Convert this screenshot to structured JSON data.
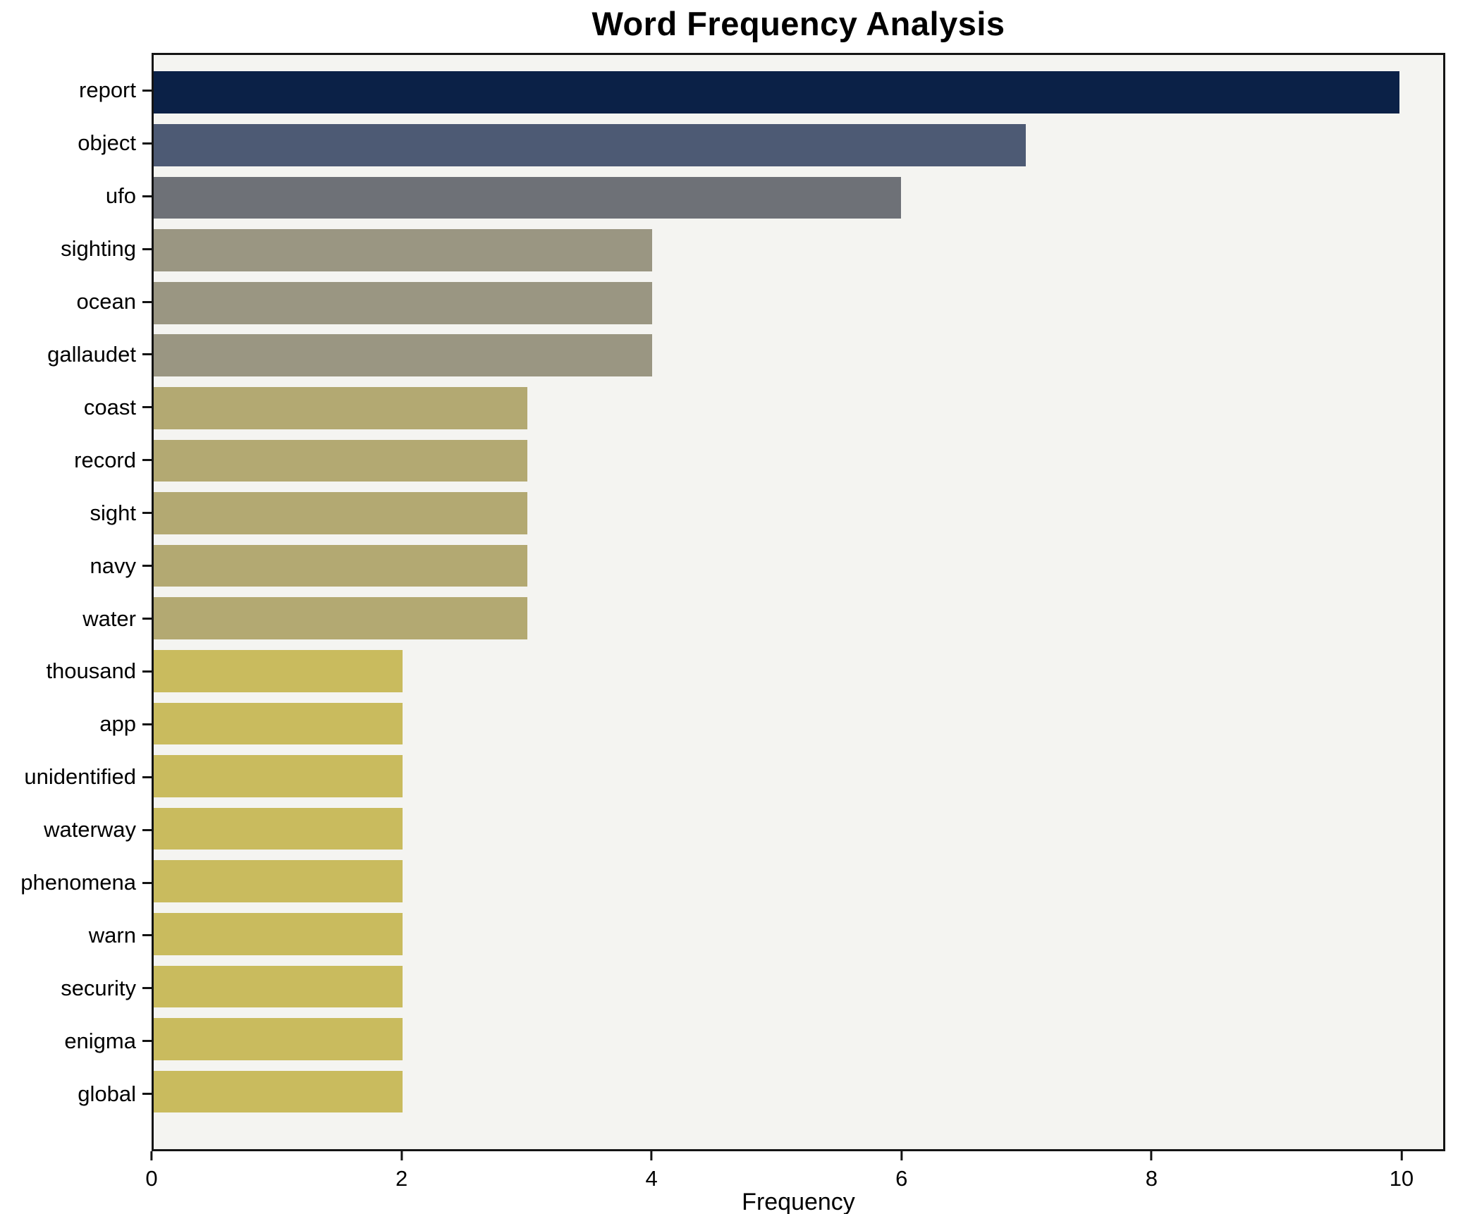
{
  "chart_data": {
    "type": "bar",
    "orientation": "horizontal",
    "title": "Word Frequency Analysis",
    "xlabel": "Frequency",
    "ylabel": "",
    "xlim": [
      0,
      10.35
    ],
    "xticks": [
      0,
      2,
      4,
      6,
      8,
      10
    ],
    "grid": false,
    "legend": false,
    "categories": [
      "report",
      "object",
      "ufo",
      "sighting",
      "ocean",
      "gallaudet",
      "coast",
      "record",
      "sight",
      "navy",
      "water",
      "thousand",
      "app",
      "unidentified",
      "waterway",
      "phenomena",
      "warn",
      "security",
      "enigma",
      "global"
    ],
    "values": [
      10,
      7,
      6,
      4,
      4,
      4,
      3,
      3,
      3,
      3,
      3,
      2,
      2,
      2,
      2,
      2,
      2,
      2,
      2,
      2
    ],
    "bar_colors": [
      "#0b2147",
      "#4d5a74",
      "#6e7177",
      "#9a9682",
      "#9a9682",
      "#9a9682",
      "#b3a972",
      "#b3a972",
      "#b3a972",
      "#b3a972",
      "#b3a972",
      "#c9bb5e",
      "#c9bb5e",
      "#c9bb5e",
      "#c9bb5e",
      "#c9bb5e",
      "#c9bb5e",
      "#c9bb5e",
      "#c9bb5e",
      "#c9bb5e"
    ],
    "colors": {
      "spine": "#141414",
      "plot_background": "#f4f4f1",
      "figure_background": "#ffffff",
      "text": "#000000"
    }
  }
}
